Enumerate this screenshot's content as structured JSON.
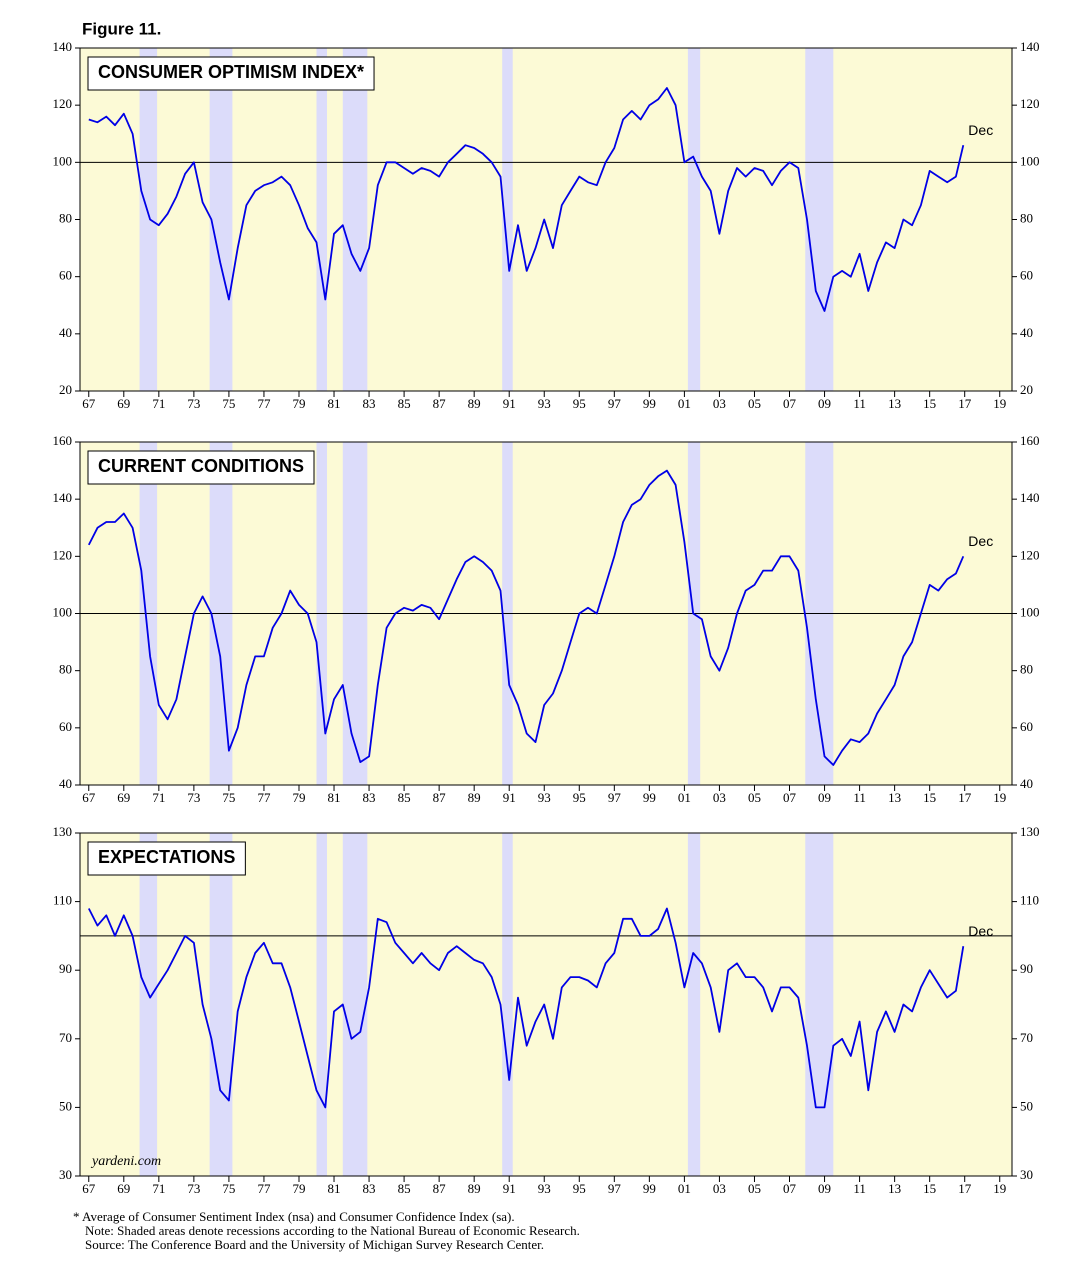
{
  "figure_title": "Figure 11.",
  "notes": [
    "* Average of Consumer Sentiment Index (nsa) and Consumer Confidence Index (sa).",
    "Note: Shaded areas denote recessions according to the National Bureau of Economic Research.",
    "Source: The Conference Board and the University of Michigan Survey Research Center."
  ],
  "chart_data": [
    {
      "type": "line",
      "title": "CONSUMER OPTIMISM INDEX*",
      "annotation": "Dec",
      "reference_line": 100,
      "background": "#fcfad6",
      "recession_color": "#dcdcfa",
      "recessions": [
        [
          1969.9,
          1970.9
        ],
        [
          1973.9,
          1975.2
        ],
        [
          1980.0,
          1980.6
        ],
        [
          1981.5,
          1982.9
        ],
        [
          1990.6,
          1991.2
        ],
        [
          2001.2,
          2001.9
        ],
        [
          2007.9,
          2009.5
        ]
      ],
      "xlim": [
        1966.5,
        2019.7
      ],
      "xticks": [
        {
          "value": 1967,
          "label": "67"
        },
        {
          "value": 1969,
          "label": "69"
        },
        {
          "value": 1971,
          "label": "71"
        },
        {
          "value": 1973,
          "label": "73"
        },
        {
          "value": 1975,
          "label": "75"
        },
        {
          "value": 1977,
          "label": "77"
        },
        {
          "value": 1979,
          "label": "79"
        },
        {
          "value": 1981,
          "label": "81"
        },
        {
          "value": 1983,
          "label": "83"
        },
        {
          "value": 1985,
          "label": "85"
        },
        {
          "value": 1987,
          "label": "87"
        },
        {
          "value": 1989,
          "label": "89"
        },
        {
          "value": 1991,
          "label": "91"
        },
        {
          "value": 1993,
          "label": "93"
        },
        {
          "value": 1995,
          "label": "95"
        },
        {
          "value": 1997,
          "label": "97"
        },
        {
          "value": 1999,
          "label": "99"
        },
        {
          "value": 2001,
          "label": "01"
        },
        {
          "value": 2003,
          "label": "03"
        },
        {
          "value": 2005,
          "label": "05"
        },
        {
          "value": 2007,
          "label": "07"
        },
        {
          "value": 2009,
          "label": "09"
        },
        {
          "value": 2011,
          "label": "11"
        },
        {
          "value": 2013,
          "label": "13"
        },
        {
          "value": 2015,
          "label": "15"
        },
        {
          "value": 2017,
          "label": "17"
        },
        {
          "value": 2019,
          "label": "19"
        }
      ],
      "ylim": [
        20,
        140
      ],
      "yticks": [
        20,
        40,
        60,
        80,
        100,
        120,
        140
      ],
      "x": [
        1967,
        1967.5,
        1968,
        1968.5,
        1969,
        1969.5,
        1970,
        1970.5,
        1971,
        1971.5,
        1972,
        1972.5,
        1973,
        1973.5,
        1974,
        1974.5,
        1975,
        1975.5,
        1976,
        1976.5,
        1977,
        1977.5,
        1978,
        1978.5,
        1979,
        1979.5,
        1980,
        1980.5,
        1981,
        1981.5,
        1982,
        1982.5,
        1983,
        1983.5,
        1984,
        1984.5,
        1985,
        1985.5,
        1986,
        1986.5,
        1987,
        1987.5,
        1988,
        1988.5,
        1989,
        1989.5,
        1990,
        1990.5,
        1991,
        1991.5,
        1992,
        1992.5,
        1993,
        1993.5,
        1994,
        1994.5,
        1995,
        1995.5,
        1996,
        1996.5,
        1997,
        1997.5,
        1998,
        1998.5,
        1999,
        1999.5,
        2000,
        2000.5,
        2001,
        2001.5,
        2002,
        2002.5,
        2003,
        2003.5,
        2004,
        2004.5,
        2005,
        2005.5,
        2006,
        2006.5,
        2007,
        2007.5,
        2008,
        2008.5,
        2009,
        2009.5,
        2010,
        2010.5,
        2011,
        2011.5,
        2012,
        2012.5,
        2013,
        2013.5,
        2014,
        2014.5,
        2015,
        2015.5,
        2016,
        2016.5,
        2016.92
      ],
      "series": [
        {
          "color": "#0000e6",
          "values": [
            115,
            114,
            116,
            113,
            117,
            110,
            90,
            80,
            78,
            82,
            88,
            96,
            100,
            86,
            80,
            65,
            52,
            70,
            85,
            90,
            92,
            93,
            95,
            92,
            85,
            77,
            72,
            52,
            75,
            78,
            68,
            62,
            70,
            92,
            100,
            100,
            98,
            96,
            98,
            97,
            95,
            100,
            103,
            106,
            105,
            103,
            100,
            95,
            62,
            78,
            62,
            70,
            80,
            70,
            85,
            90,
            95,
            93,
            92,
            100,
            105,
            115,
            118,
            115,
            120,
            122,
            126,
            120,
            100,
            102,
            95,
            90,
            75,
            90,
            98,
            95,
            98,
            97,
            92,
            97,
            100,
            98,
            80,
            55,
            48,
            60,
            62,
            60,
            68,
            55,
            65,
            72,
            70,
            80,
            78,
            85,
            97,
            95,
            93,
            95,
            106
          ]
        }
      ]
    },
    {
      "type": "line",
      "title": "CURRENT CONDITIONS",
      "annotation": "Dec",
      "reference_line": 100,
      "background": "#fcfad6",
      "recession_color": "#dcdcfa",
      "recessions": [
        [
          1969.9,
          1970.9
        ],
        [
          1973.9,
          1975.2
        ],
        [
          1980.0,
          1980.6
        ],
        [
          1981.5,
          1982.9
        ],
        [
          1990.6,
          1991.2
        ],
        [
          2001.2,
          2001.9
        ],
        [
          2007.9,
          2009.5
        ]
      ],
      "xlim": [
        1966.5,
        2019.7
      ],
      "xticks": [
        {
          "value": 1967,
          "label": "67"
        },
        {
          "value": 1969,
          "label": "69"
        },
        {
          "value": 1971,
          "label": "71"
        },
        {
          "value": 1973,
          "label": "73"
        },
        {
          "value": 1975,
          "label": "75"
        },
        {
          "value": 1977,
          "label": "77"
        },
        {
          "value": 1979,
          "label": "79"
        },
        {
          "value": 1981,
          "label": "81"
        },
        {
          "value": 1983,
          "label": "83"
        },
        {
          "value": 1985,
          "label": "85"
        },
        {
          "value": 1987,
          "label": "87"
        },
        {
          "value": 1989,
          "label": "89"
        },
        {
          "value": 1991,
          "label": "91"
        },
        {
          "value": 1993,
          "label": "93"
        },
        {
          "value": 1995,
          "label": "95"
        },
        {
          "value": 1997,
          "label": "97"
        },
        {
          "value": 1999,
          "label": "99"
        },
        {
          "value": 2001,
          "label": "01"
        },
        {
          "value": 2003,
          "label": "03"
        },
        {
          "value": 2005,
          "label": "05"
        },
        {
          "value": 2007,
          "label": "07"
        },
        {
          "value": 2009,
          "label": "09"
        },
        {
          "value": 2011,
          "label": "11"
        },
        {
          "value": 2013,
          "label": "13"
        },
        {
          "value": 2015,
          "label": "15"
        },
        {
          "value": 2017,
          "label": "17"
        },
        {
          "value": 2019,
          "label": "19"
        }
      ],
      "ylim": [
        40,
        160
      ],
      "yticks": [
        40,
        60,
        80,
        100,
        120,
        140,
        160
      ],
      "x": [
        1967,
        1967.5,
        1968,
        1968.5,
        1969,
        1969.5,
        1970,
        1970.5,
        1971,
        1971.5,
        1972,
        1972.5,
        1973,
        1973.5,
        1974,
        1974.5,
        1975,
        1975.5,
        1976,
        1976.5,
        1977,
        1977.5,
        1978,
        1978.5,
        1979,
        1979.5,
        1980,
        1980.5,
        1981,
        1981.5,
        1982,
        1982.5,
        1983,
        1983.5,
        1984,
        1984.5,
        1985,
        1985.5,
        1986,
        1986.5,
        1987,
        1987.5,
        1988,
        1988.5,
        1989,
        1989.5,
        1990,
        1990.5,
        1991,
        1991.5,
        1992,
        1992.5,
        1993,
        1993.5,
        1994,
        1994.5,
        1995,
        1995.5,
        1996,
        1996.5,
        1997,
        1997.5,
        1998,
        1998.5,
        1999,
        1999.5,
        2000,
        2000.5,
        2001,
        2001.5,
        2002,
        2002.5,
        2003,
        2003.5,
        2004,
        2004.5,
        2005,
        2005.5,
        2006,
        2006.5,
        2007,
        2007.5,
        2008,
        2008.5,
        2009,
        2009.5,
        2010,
        2010.5,
        2011,
        2011.5,
        2012,
        2012.5,
        2013,
        2013.5,
        2014,
        2014.5,
        2015,
        2015.5,
        2016,
        2016.5,
        2016.92
      ],
      "series": [
        {
          "color": "#0000e6",
          "values": [
            124,
            130,
            132,
            132,
            135,
            130,
            115,
            85,
            68,
            63,
            70,
            85,
            100,
            106,
            100,
            85,
            52,
            60,
            75,
            85,
            85,
            95,
            100,
            108,
            103,
            100,
            90,
            58,
            70,
            75,
            58,
            48,
            50,
            75,
            95,
            100,
            102,
            101,
            103,
            102,
            98,
            105,
            112,
            118,
            120,
            118,
            115,
            108,
            75,
            68,
            58,
            55,
            68,
            72,
            80,
            90,
            100,
            102,
            100,
            110,
            120,
            132,
            138,
            140,
            145,
            148,
            150,
            145,
            125,
            100,
            98,
            85,
            80,
            88,
            100,
            108,
            110,
            115,
            115,
            120,
            120,
            115,
            95,
            70,
            50,
            47,
            52,
            56,
            55,
            58,
            65,
            70,
            75,
            85,
            90,
            100,
            110,
            108,
            112,
            114,
            120
          ]
        }
      ]
    },
    {
      "type": "line",
      "title": "EXPECTATIONS",
      "annotation": "Dec",
      "source_label": "yardeni.com",
      "reference_line": 100,
      "background": "#fcfad6",
      "recession_color": "#dcdcfa",
      "recessions": [
        [
          1969.9,
          1970.9
        ],
        [
          1973.9,
          1975.2
        ],
        [
          1980.0,
          1980.6
        ],
        [
          1981.5,
          1982.9
        ],
        [
          1990.6,
          1991.2
        ],
        [
          2001.2,
          2001.9
        ],
        [
          2007.9,
          2009.5
        ]
      ],
      "xlim": [
        1966.5,
        2019.7
      ],
      "xticks": [
        {
          "value": 1967,
          "label": "67"
        },
        {
          "value": 1969,
          "label": "69"
        },
        {
          "value": 1971,
          "label": "71"
        },
        {
          "value": 1973,
          "label": "73"
        },
        {
          "value": 1975,
          "label": "75"
        },
        {
          "value": 1977,
          "label": "77"
        },
        {
          "value": 1979,
          "label": "79"
        },
        {
          "value": 1981,
          "label": "81"
        },
        {
          "value": 1983,
          "label": "83"
        },
        {
          "value": 1985,
          "label": "85"
        },
        {
          "value": 1987,
          "label": "87"
        },
        {
          "value": 1989,
          "label": "89"
        },
        {
          "value": 1991,
          "label": "91"
        },
        {
          "value": 1993,
          "label": "93"
        },
        {
          "value": 1995,
          "label": "95"
        },
        {
          "value": 1997,
          "label": "97"
        },
        {
          "value": 1999,
          "label": "99"
        },
        {
          "value": 2001,
          "label": "01"
        },
        {
          "value": 2003,
          "label": "03"
        },
        {
          "value": 2005,
          "label": "05"
        },
        {
          "value": 2007,
          "label": "07"
        },
        {
          "value": 2009,
          "label": "09"
        },
        {
          "value": 2011,
          "label": "11"
        },
        {
          "value": 2013,
          "label": "13"
        },
        {
          "value": 2015,
          "label": "15"
        },
        {
          "value": 2017,
          "label": "17"
        },
        {
          "value": 2019,
          "label": "19"
        }
      ],
      "ylim": [
        30,
        130
      ],
      "yticks": [
        30,
        50,
        70,
        90,
        110,
        130
      ],
      "x": [
        1967,
        1967.5,
        1968,
        1968.5,
        1969,
        1969.5,
        1970,
        1970.5,
        1971,
        1971.5,
        1972,
        1972.5,
        1973,
        1973.5,
        1974,
        1974.5,
        1975,
        1975.5,
        1976,
        1976.5,
        1977,
        1977.5,
        1978,
        1978.5,
        1979,
        1979.5,
        1980,
        1980.5,
        1981,
        1981.5,
        1982,
        1982.5,
        1983,
        1983.5,
        1984,
        1984.5,
        1985,
        1985.5,
        1986,
        1986.5,
        1987,
        1987.5,
        1988,
        1988.5,
        1989,
        1989.5,
        1990,
        1990.5,
        1991,
        1991.5,
        1992,
        1992.5,
        1993,
        1993.5,
        1994,
        1994.5,
        1995,
        1995.5,
        1996,
        1996.5,
        1997,
        1997.5,
        1998,
        1998.5,
        1999,
        1999.5,
        2000,
        2000.5,
        2001,
        2001.5,
        2002,
        2002.5,
        2003,
        2003.5,
        2004,
        2004.5,
        2005,
        2005.5,
        2006,
        2006.5,
        2007,
        2007.5,
        2008,
        2008.5,
        2009,
        2009.5,
        2010,
        2010.5,
        2011,
        2011.5,
        2012,
        2012.5,
        2013,
        2013.5,
        2014,
        2014.5,
        2015,
        2015.5,
        2016,
        2016.5,
        2016.92
      ],
      "series": [
        {
          "color": "#0000e6",
          "values": [
            108,
            103,
            106,
            100,
            106,
            100,
            88,
            82,
            86,
            90,
            95,
            100,
            98,
            80,
            70,
            55,
            52,
            78,
            88,
            95,
            98,
            92,
            92,
            85,
            75,
            65,
            55,
            50,
            78,
            80,
            70,
            72,
            85,
            105,
            104,
            98,
            95,
            92,
            95,
            92,
            90,
            95,
            97,
            95,
            93,
            92,
            88,
            80,
            58,
            82,
            68,
            75,
            80,
            70,
            85,
            88,
            88,
            87,
            85,
            92,
            95,
            105,
            105,
            100,
            100,
            102,
            108,
            98,
            85,
            95,
            92,
            85,
            72,
            90,
            92,
            88,
            88,
            85,
            78,
            85,
            85,
            82,
            68,
            50,
            50,
            68,
            70,
            65,
            75,
            55,
            72,
            78,
            72,
            80,
            78,
            85,
            90,
            86,
            82,
            84,
            97
          ]
        }
      ]
    }
  ]
}
